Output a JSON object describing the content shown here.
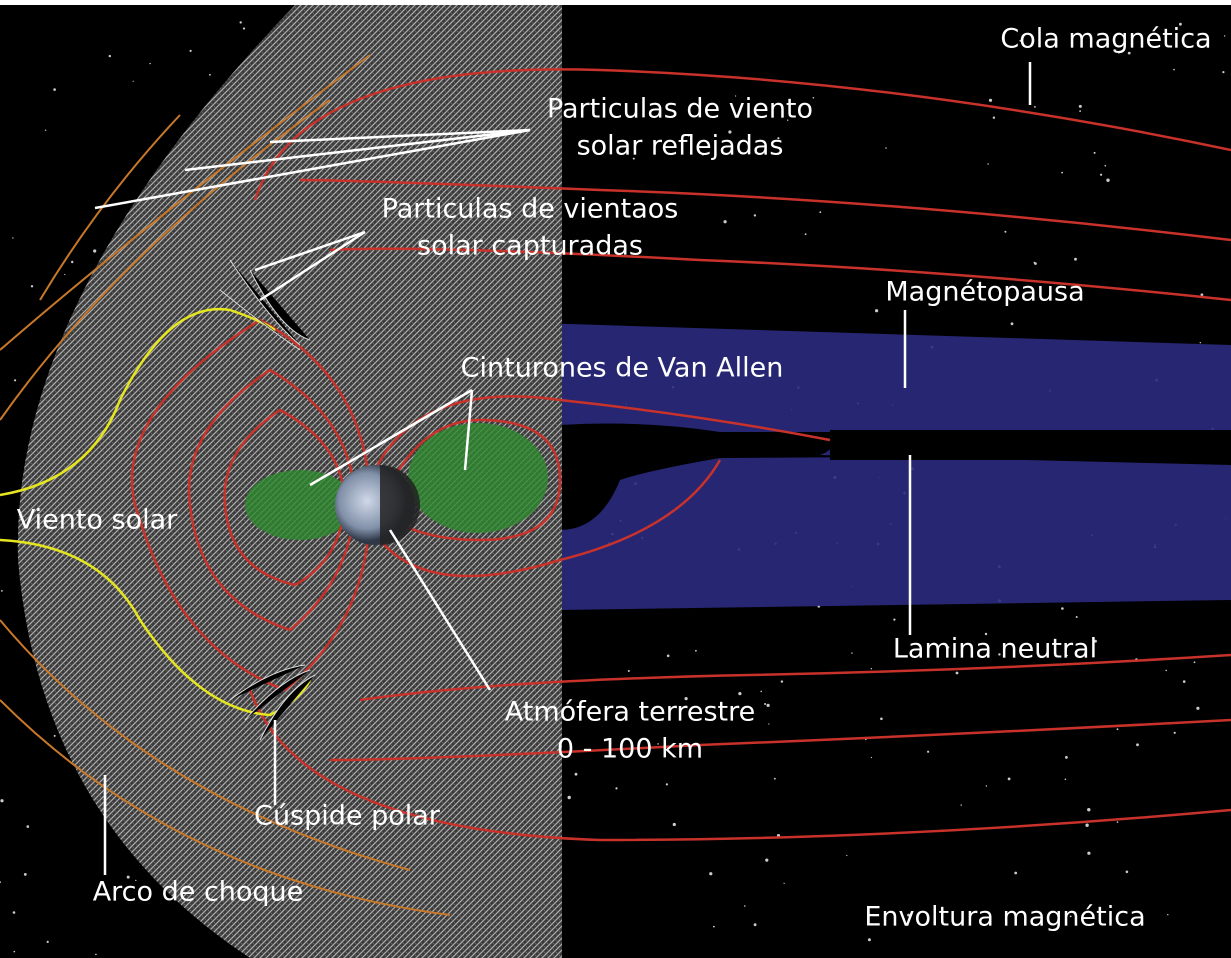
{
  "labels": [
    {
      "lines": [
        "Cola magnética"
      ]
    },
    {
      "lines": [
        "Particulas de viento",
        "solar reflejadas"
      ]
    },
    {
      "lines": [
        "Particulas de vientaos",
        "solar capturadas"
      ]
    },
    {
      "lines": [
        "Magnétopausa"
      ]
    },
    {
      "lines": [
        "Cinturones de Van Allen"
      ]
    },
    {
      "lines": [
        "Viento solar"
      ]
    },
    {
      "lines": [
        "Lamina neutral"
      ]
    },
    {
      "lines": [
        "Atmófera terrestre",
        "0 - 100 km"
      ]
    },
    {
      "lines": [
        "Cúspide polar"
      ]
    },
    {
      "lines": [
        "Arco de choque"
      ]
    },
    {
      "lines": [
        "Envoltura magnética"
      ]
    }
  ]
}
